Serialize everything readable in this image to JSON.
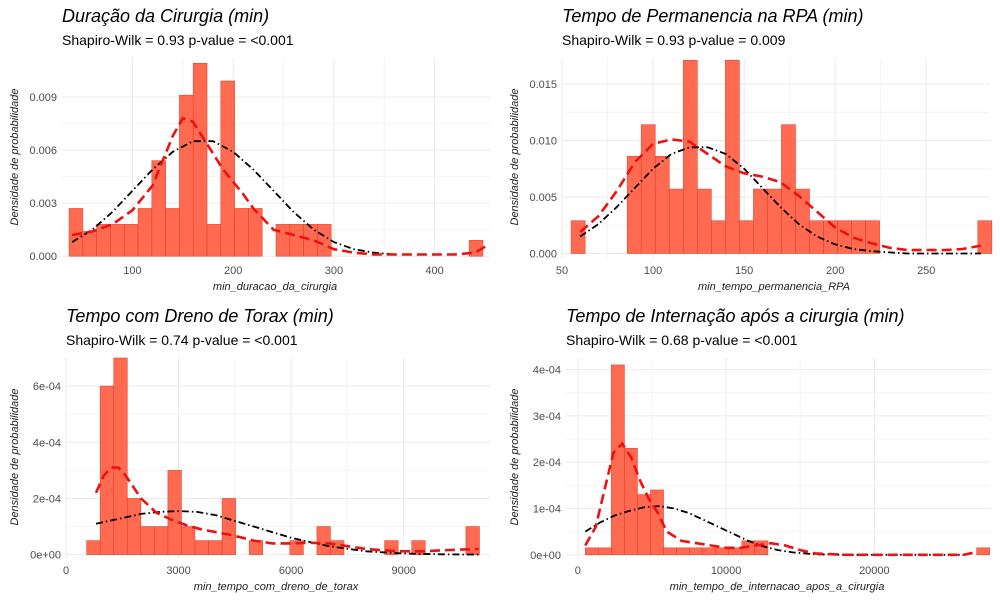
{
  "colors": {
    "bar_fill": "#ff6347",
    "bar_stroke": "#e0402a",
    "normal_curve": "#000000",
    "kde_curve": "#ee1111",
    "grid": "#ebebeb",
    "tick_text": "#4d4d4d"
  },
  "chart_data": [
    {
      "type": "histogram",
      "title": "Duração da Cirurgia (min)",
      "subtitle": "Shapiro-Wilk = 0.93 p-value = <0.001",
      "xlabel": "min_duracao_da_cirurgia",
      "ylabel": "Densidade de probabilidade",
      "xlim": [
        30,
        455
      ],
      "ylim": [
        -0.0001,
        0.0112
      ],
      "xticks": [
        100,
        200,
        300,
        400
      ],
      "xtick_labels": [
        "100",
        "200",
        "300",
        "400"
      ],
      "yticks": [
        0,
        0.003,
        0.006,
        0.009
      ],
      "ytick_labels": [
        "0.000",
        "0.003",
        "0.006",
        "0.009"
      ],
      "bin_start": 37,
      "bin_width": 13.7,
      "bin_values": [
        0.0027,
        0.0014,
        0.0018,
        0.0018,
        0.0018,
        0.0027,
        0.0054,
        0.0027,
        0.0091,
        0.0109,
        0.0018,
        0.0099,
        0.0027,
        0.0027,
        0,
        0.0018,
        0.0018,
        0.0018,
        0.0018,
        0,
        0,
        0,
        0,
        0,
        0,
        0,
        0,
        0,
        0,
        0.0009
      ],
      "series": [
        {
          "name": "normal",
          "style": "dot-dash",
          "x": [
            40,
            60,
            80,
            100,
            120,
            140,
            160,
            180,
            200,
            220,
            240,
            260,
            280,
            300,
            320,
            340,
            360
          ],
          "y": [
            0.0008,
            0.0015,
            0.0025,
            0.0037,
            0.0049,
            0.0059,
            0.0065,
            0.0065,
            0.0059,
            0.0049,
            0.0037,
            0.0025,
            0.0015,
            0.0008,
            0.0004,
            0.0002,
            0.0001
          ]
        },
        {
          "name": "kde",
          "style": "dashed",
          "x": [
            40,
            60,
            80,
            100,
            120,
            140,
            150,
            160,
            170,
            180,
            190,
            200,
            210,
            220,
            240,
            260,
            280,
            300,
            320,
            340,
            360,
            380,
            400,
            420,
            440,
            452
          ],
          "y": [
            0.0012,
            0.0014,
            0.0018,
            0.0026,
            0.004,
            0.0068,
            0.0078,
            0.0076,
            0.0067,
            0.0058,
            0.0049,
            0.0042,
            0.0035,
            0.0027,
            0.0015,
            0.0012,
            0.0009,
            0.0004,
            0.0002,
            0.0001,
            0.0001,
            0.0001,
            0.0001,
            0.0001,
            0.0002,
            0.0006
          ]
        }
      ]
    },
    {
      "type": "histogram",
      "title": "Tempo de Permanencia na RPA (min)",
      "subtitle": "Shapiro-Wilk = 0.93 p-value = 0.009",
      "xlabel": "min_tempo_permanencia_RPA",
      "ylabel": "Densidade de probabilidade",
      "xlim": [
        50,
        285
      ],
      "ylim": [
        -0.0004,
        0.0173
      ],
      "xticks": [
        50,
        100,
        150,
        200,
        250
      ],
      "xtick_labels": [
        "50",
        "100",
        "150",
        "200",
        "250"
      ],
      "yticks": [
        0,
        0.005,
        0.01,
        0.015
      ],
      "ytick_labels": [
        "0.000",
        "0.005",
        "0.010",
        "0.015"
      ],
      "bin_start": 55,
      "bin_width": 7.7,
      "bin_values": [
        0.0029,
        0,
        0,
        0,
        0.0086,
        0.0114,
        0.0086,
        0.0057,
        0.0171,
        0.0057,
        0.0029,
        0.0171,
        0.0029,
        0.0057,
        0.0057,
        0.0114,
        0.0057,
        0.0029,
        0.0029,
        0.0029,
        0.0029,
        0.0029,
        0,
        0,
        0,
        0,
        0,
        0,
        0,
        0.0029
      ],
      "series": [
        {
          "name": "normal",
          "style": "dot-dash",
          "x": [
            60,
            70,
            80,
            90,
            100,
            110,
            120,
            130,
            140,
            150,
            160,
            170,
            180,
            190,
            200,
            210,
            220,
            230,
            240,
            250,
            260,
            270,
            280
          ],
          "y": [
            0.0015,
            0.0026,
            0.0041,
            0.0058,
            0.0075,
            0.0088,
            0.0094,
            0.0094,
            0.0088,
            0.0075,
            0.0058,
            0.0041,
            0.0026,
            0.0015,
            0.0008,
            0.0004,
            0.0002,
            0.0001,
            0,
            0,
            0,
            0,
            0
          ]
        },
        {
          "name": "kde",
          "style": "dashed",
          "x": [
            60,
            70,
            80,
            90,
            100,
            110,
            120,
            130,
            140,
            150,
            160,
            170,
            180,
            190,
            200,
            210,
            220,
            230,
            240,
            250,
            260,
            270,
            280
          ],
          "y": [
            0.0019,
            0.0033,
            0.0055,
            0.0081,
            0.0097,
            0.0101,
            0.0099,
            0.0088,
            0.0077,
            0.0071,
            0.0068,
            0.0063,
            0.0051,
            0.0037,
            0.0023,
            0.0014,
            0.0009,
            0.0005,
            0.0003,
            0.0003,
            0.0003,
            0.0004,
            0.0007
          ]
        }
      ]
    },
    {
      "type": "histogram",
      "title": "Tempo com Dreno de Torax (min)",
      "subtitle": "Shapiro-Wilk = 0.74 p-value = <0.001",
      "xlabel": "min_tempo_com_dreno_de_torax",
      "ylabel": "Densidade de probabilidade",
      "xlim": [
        0,
        11300
      ],
      "ylim": [
        -1.2e-05,
        0.0007
      ],
      "xticks": [
        0,
        3000,
        6000,
        9000
      ],
      "xtick_labels": [
        "0",
        "3000",
        "6000",
        "9000"
      ],
      "yticks": [
        0,
        0.0002,
        0.0004,
        0.0006
      ],
      "ytick_labels": [
        "0e+00",
        "2e-04",
        "4e-04",
        "6e-04"
      ],
      "bin_start": 550,
      "bin_width": 361,
      "bin_values": [
        5e-05,
        0.0006,
        0.0007,
        0.0002,
        0.0001,
        0.0001,
        0.0003,
        0.0001,
        5e-05,
        5e-05,
        0.0002,
        0,
        5e-05,
        0,
        0,
        5e-05,
        0,
        0.0001,
        5e-05,
        0,
        0,
        0,
        5e-05,
        0,
        5e-05,
        0,
        0,
        0,
        0.0001
      ],
      "series": [
        {
          "name": "normal",
          "style": "dot-dash",
          "x": [
            800,
            1500,
            2000,
            2500,
            3000,
            3500,
            4000,
            4500,
            5000,
            6000,
            7000,
            8000,
            9000,
            10000,
            11000
          ],
          "y": [
            0.00011,
            0.00013,
            0.000145,
            0.000152,
            0.000155,
            0.000152,
            0.00014,
            0.00012,
            0.0001,
            6e-05,
            3e-05,
            1.2e-05,
            4e-06,
            1e-06,
            0
          ]
        },
        {
          "name": "kde",
          "style": "dashed",
          "x": [
            800,
            1000,
            1200,
            1400,
            1600,
            1800,
            2000,
            2400,
            2800,
            3200,
            3600,
            4000,
            4400,
            5000,
            5500,
            6000,
            6500,
            7000,
            7500,
            8000,
            8500,
            9000,
            9500,
            10000,
            10500,
            11000
          ],
          "y": [
            0.00022,
            0.00028,
            0.00031,
            0.00031,
            0.00028,
            0.00024,
            0.0002,
            0.00015,
            0.000125,
            0.000105,
            9e-05,
            8e-05,
            7e-05,
            5e-05,
            4e-05,
            4e-05,
            4.2e-05,
            4e-05,
            3e-05,
            2e-05,
            1.5e-05,
            1.2e-05,
            1.2e-05,
            1.5e-05,
            1.8e-05,
            2e-05
          ]
        }
      ]
    },
    {
      "type": "histogram",
      "title": "Tempo de Internação após a cirurgia (min)",
      "subtitle": "Shapiro-Wilk = 0.68 p-value = <0.001",
      "xlabel": "min_tempo_de_internacao_apos_a_cirurgia",
      "ylabel": "Densidade de probabilidade",
      "xlim": [
        -800,
        27800
      ],
      "ylim": [
        -7e-06,
        0.000425
      ],
      "xticks": [
        0,
        10000,
        20000
      ],
      "xtick_labels": [
        "0",
        "10000",
        "20000"
      ],
      "yticks": [
        0,
        0.0001,
        0.0002,
        0.0003,
        0.0004
      ],
      "ytick_labels": [
        "0e+00",
        "1e-04",
        "2e-04",
        "3e-04",
        "4e-04"
      ],
      "bin_start": 500,
      "bin_width": 880,
      "bin_values": [
        1.5e-05,
        1.5e-05,
        0.00041,
        0.00023,
        0.00013,
        0.00014,
        1.5e-05,
        1.5e-05,
        1.5e-05,
        1.5e-05,
        1.5e-05,
        1.5e-05,
        3e-05,
        3e-05,
        0,
        0,
        0,
        0,
        0,
        0,
        0,
        0,
        0,
        0,
        0,
        0,
        0,
        0,
        0,
        0,
        1.5e-05
      ],
      "series": [
        {
          "name": "normal",
          "style": "dot-dash",
          "x": [
            500,
            1500,
            2500,
            3500,
            4500,
            5500,
            6500,
            7500,
            8500,
            9500,
            10500,
            11500,
            12500,
            13500,
            14500,
            16000,
            18000,
            20000,
            22000,
            24000,
            26000
          ],
          "y": [
            5e-05,
            7e-05,
            8.5e-05,
            9.5e-05,
            0.000103,
            0.000105,
            0.0001,
            9e-05,
            7.5e-05,
            6e-05,
            4.5e-05,
            3e-05,
            1.8e-05,
            1e-05,
            5e-06,
            1e-06,
            0,
            0,
            0,
            0,
            0
          ]
        },
        {
          "name": "kde",
          "style": "dashed",
          "x": [
            500,
            1200,
            1800,
            2400,
            3000,
            3600,
            4200,
            4800,
            5400,
            6000,
            7000,
            8000,
            9000,
            10000,
            11000,
            12000,
            13000,
            14000,
            15000,
            16000,
            18000,
            20000,
            22000,
            24000,
            26000,
            26800
          ],
          "y": [
            2e-05,
            6e-05,
            0.00014,
            0.00022,
            0.00024,
            0.00021,
            0.00016,
            0.00012,
            9e-05,
            5e-05,
            3e-05,
            2.5e-05,
            2e-05,
            1.5e-05,
            1.5e-05,
            2e-05,
            2.5e-05,
            2e-05,
            1e-05,
            3e-06,
            0,
            0,
            0,
            0,
            0,
            5e-06
          ]
        }
      ]
    }
  ]
}
